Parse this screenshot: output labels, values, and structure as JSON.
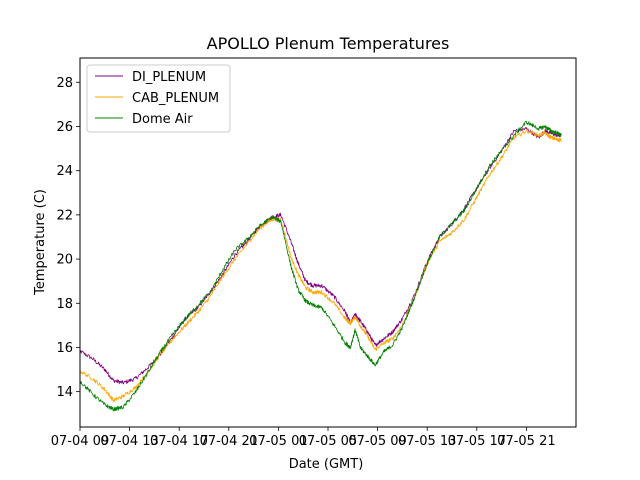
{
  "chart_data": {
    "type": "line",
    "title": "APOLLO Plenum Temperatures",
    "xlabel": "Date (GMT)",
    "ylabel": "Temperature (C)",
    "xlim": [
      0,
      40
    ],
    "ylim": [
      12.4,
      29.1
    ],
    "x_unit": "hours since 07-04 09:00 GMT",
    "xticks": [
      {
        "value": 0,
        "label": "07-04 09"
      },
      {
        "value": 4,
        "label": "07-04 13"
      },
      {
        "value": 8,
        "label": "07-04 17"
      },
      {
        "value": 12,
        "label": "07-04 21"
      },
      {
        "value": 16,
        "label": "07-05 01"
      },
      {
        "value": 20,
        "label": "07-05 05"
      },
      {
        "value": 24,
        "label": "07-05 09"
      },
      {
        "value": 28,
        "label": "07-05 13"
      },
      {
        "value": 32,
        "label": "07-05 17"
      },
      {
        "value": 36,
        "label": "07-05 21"
      }
    ],
    "yticks": [
      14,
      16,
      18,
      20,
      22,
      24,
      26,
      28
    ],
    "legend_location": "top-left",
    "series": [
      {
        "name": "DI_PLENUM",
        "color": "#800080",
        "x": [
          -0.2,
          1.0,
          2.0,
          2.7,
          3.5,
          4.5,
          5.5,
          6.5,
          7.5,
          8.5,
          9.5,
          10.5,
          11.5,
          12.5,
          13.5,
          14.5,
          15.5,
          16.2,
          17.0,
          17.6,
          18.2,
          18.8,
          19.5,
          20.5,
          21.4,
          21.8,
          22.2,
          22.6,
          23.2,
          23.8,
          24.5,
          25.2,
          26.0,
          27.0,
          28.0,
          29.0,
          30.0,
          31.0,
          32.0,
          33.0,
          34.0,
          35.0,
          36.0,
          37.0,
          37.5,
          38.0,
          38.5,
          38.8
        ],
        "y": [
          15.9,
          15.5,
          15.0,
          14.5,
          14.4,
          14.6,
          15.1,
          15.7,
          16.5,
          17.3,
          17.8,
          18.5,
          19.3,
          20.2,
          20.8,
          21.5,
          21.9,
          22.0,
          20.8,
          19.8,
          19.0,
          18.8,
          18.8,
          18.3,
          17.6,
          17.1,
          17.5,
          17.2,
          16.7,
          16.1,
          16.4,
          16.7,
          17.3,
          18.4,
          19.9,
          21.0,
          21.6,
          22.3,
          23.2,
          24.1,
          24.9,
          25.8,
          25.9,
          25.5,
          25.8,
          25.7,
          25.6,
          25.6
        ]
      },
      {
        "name": "CAB_PLENUM",
        "color": "#ffa500",
        "x": [
          -0.2,
          1.0,
          2.0,
          2.7,
          3.5,
          4.5,
          5.5,
          6.5,
          7.5,
          8.5,
          9.5,
          10.5,
          11.5,
          12.5,
          13.5,
          14.5,
          15.5,
          16.2,
          17.0,
          17.6,
          18.2,
          18.8,
          19.5,
          20.5,
          21.4,
          21.8,
          22.2,
          22.6,
          23.2,
          23.8,
          24.5,
          25.2,
          26.0,
          27.0,
          28.0,
          29.0,
          30.0,
          31.0,
          32.0,
          33.0,
          34.0,
          35.0,
          36.0,
          37.0,
          37.5,
          38.0,
          38.5,
          38.8
        ],
        "y": [
          15.0,
          14.6,
          14.1,
          13.6,
          13.8,
          14.2,
          14.9,
          15.7,
          16.4,
          17.0,
          17.6,
          18.3,
          19.2,
          20.0,
          20.7,
          21.4,
          21.8,
          21.8,
          20.1,
          19.3,
          18.7,
          18.5,
          18.5,
          18.0,
          17.3,
          17.1,
          17.4,
          17.0,
          16.5,
          15.9,
          16.2,
          16.4,
          17.0,
          18.3,
          19.8,
          20.8,
          21.2,
          21.8,
          22.8,
          23.8,
          24.6,
          25.5,
          25.8,
          25.6,
          25.7,
          25.5,
          25.4,
          25.4
        ]
      },
      {
        "name": "Dome Air",
        "color": "#008000",
        "x": [
          -0.2,
          1.0,
          2.0,
          2.7,
          3.5,
          4.5,
          5.5,
          6.5,
          7.5,
          8.5,
          9.5,
          10.5,
          11.5,
          12.5,
          13.5,
          14.5,
          15.5,
          16.2,
          17.0,
          17.6,
          18.2,
          18.8,
          19.5,
          20.5,
          21.4,
          21.8,
          22.2,
          22.6,
          23.2,
          23.8,
          24.5,
          25.2,
          26.0,
          27.0,
          28.0,
          29.0,
          30.0,
          31.0,
          32.0,
          33.0,
          34.0,
          35.0,
          36.0,
          37.0,
          37.5,
          38.0,
          38.5,
          38.8
        ],
        "y": [
          14.6,
          13.9,
          13.4,
          13.2,
          13.3,
          14.0,
          14.9,
          15.8,
          16.6,
          17.3,
          17.9,
          18.5,
          19.5,
          20.4,
          20.9,
          21.5,
          21.9,
          21.7,
          19.7,
          18.6,
          18.1,
          17.9,
          17.8,
          17.0,
          16.2,
          16.0,
          16.8,
          16.0,
          15.6,
          15.2,
          15.8,
          16.1,
          16.9,
          18.3,
          19.8,
          21.0,
          21.6,
          22.2,
          23.2,
          24.2,
          24.9,
          25.6,
          26.2,
          25.9,
          26.0,
          25.8,
          25.7,
          25.6
        ]
      }
    ]
  }
}
